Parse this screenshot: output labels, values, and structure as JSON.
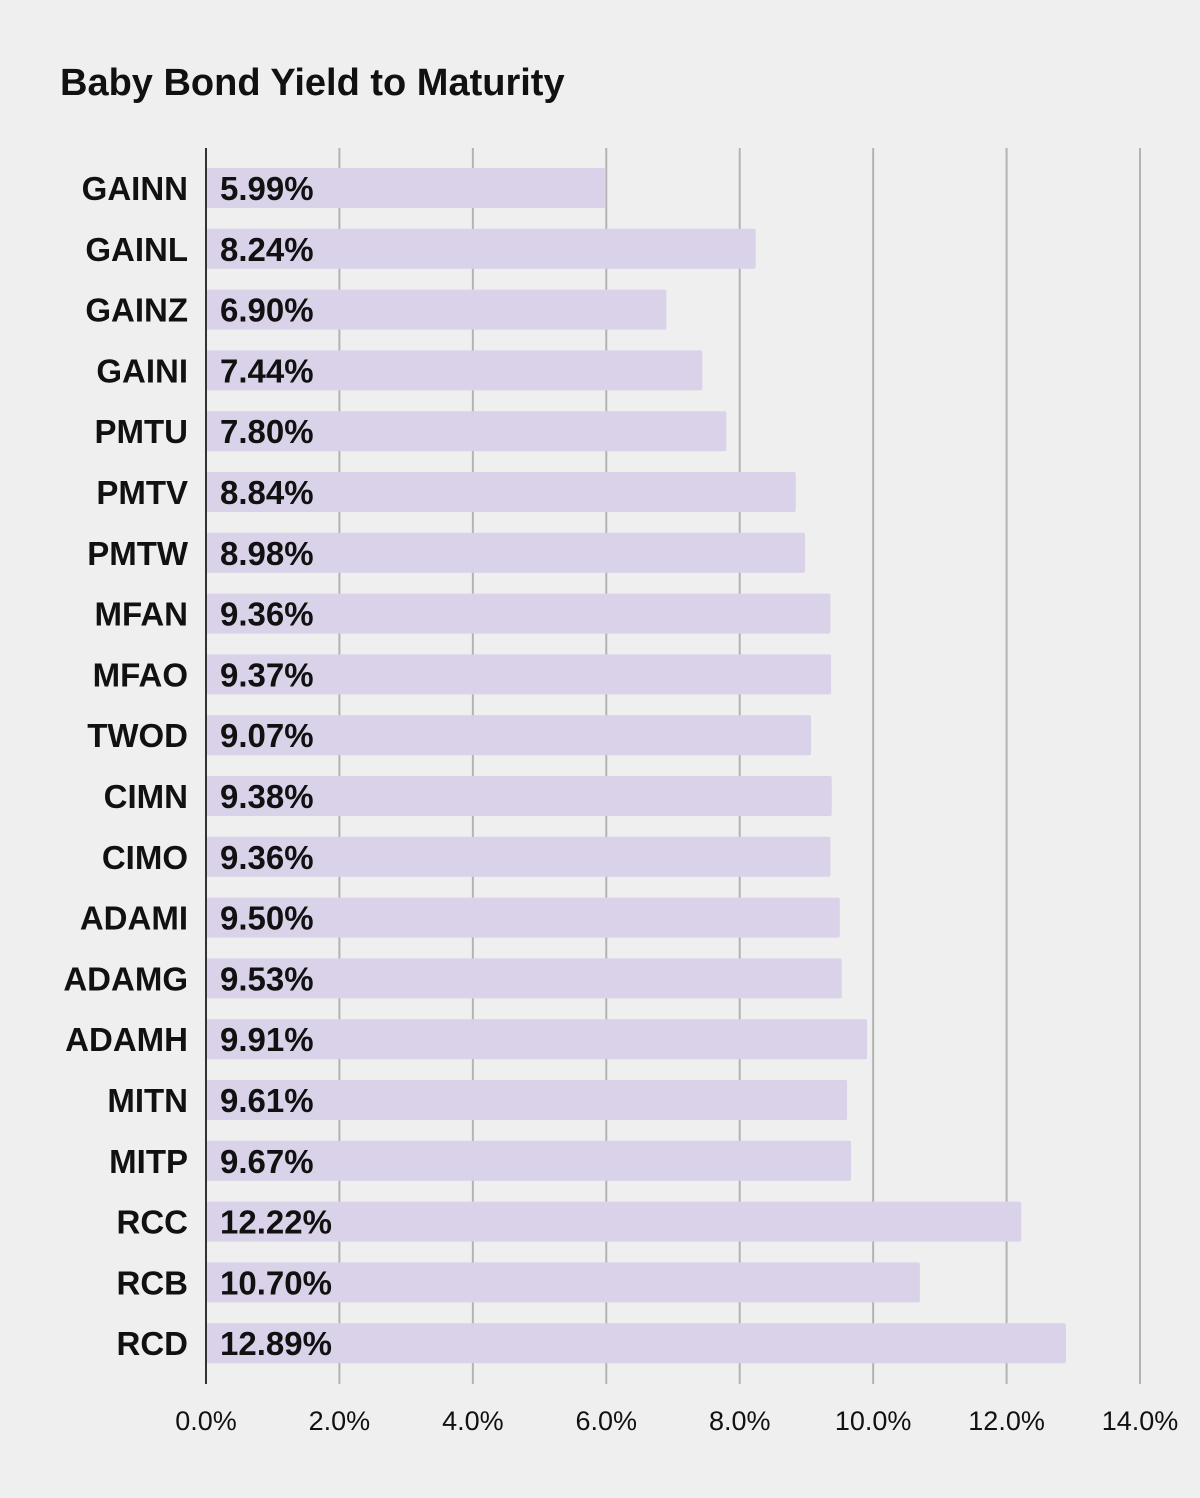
{
  "chart_data": {
    "type": "bar",
    "orientation": "horizontal",
    "title": "Baby Bond Yield to Maturity",
    "xlabel": "",
    "ylabel": "",
    "categories": [
      "GAINN",
      "GAINL",
      "GAINZ",
      "GAINI",
      "PMTU",
      "PMTV",
      "PMTW",
      "MFAN",
      "MFAO",
      "TWOD",
      "CIMN",
      "CIMO",
      "ADAMI",
      "ADAMG",
      "ADAMH",
      "MITN",
      "MITP",
      "RCC",
      "RCB",
      "RCD"
    ],
    "values": [
      5.99,
      8.24,
      6.9,
      7.44,
      7.8,
      8.84,
      8.98,
      9.36,
      9.37,
      9.07,
      9.38,
      9.36,
      9.5,
      9.53,
      9.91,
      9.61,
      9.67,
      12.22,
      10.7,
      12.89
    ],
    "data_labels": [
      "5.99%",
      "8.24%",
      "6.90%",
      "7.44%",
      "7.80%",
      "8.84%",
      "8.98%",
      "9.36%",
      "9.37%",
      "9.07%",
      "9.38%",
      "9.36%",
      "9.50%",
      "9.53%",
      "9.91%",
      "9.61%",
      "9.67%",
      "12.22%",
      "10.70%",
      "12.89%"
    ],
    "xlim": [
      0,
      14
    ],
    "x_ticks": [
      0,
      2,
      4,
      6,
      8,
      10,
      12,
      14
    ],
    "x_tick_labels": [
      "0.0%",
      "2.0%",
      "4.0%",
      "6.0%",
      "8.0%",
      "10.0%",
      "12.0%",
      "14.0%"
    ],
    "grid": true,
    "legend": "none",
    "colors": {
      "bar": "#d9d2e9",
      "grid": "#b3b3b3",
      "axis": "#333333",
      "text": "#111111",
      "background": "#efefef"
    }
  }
}
